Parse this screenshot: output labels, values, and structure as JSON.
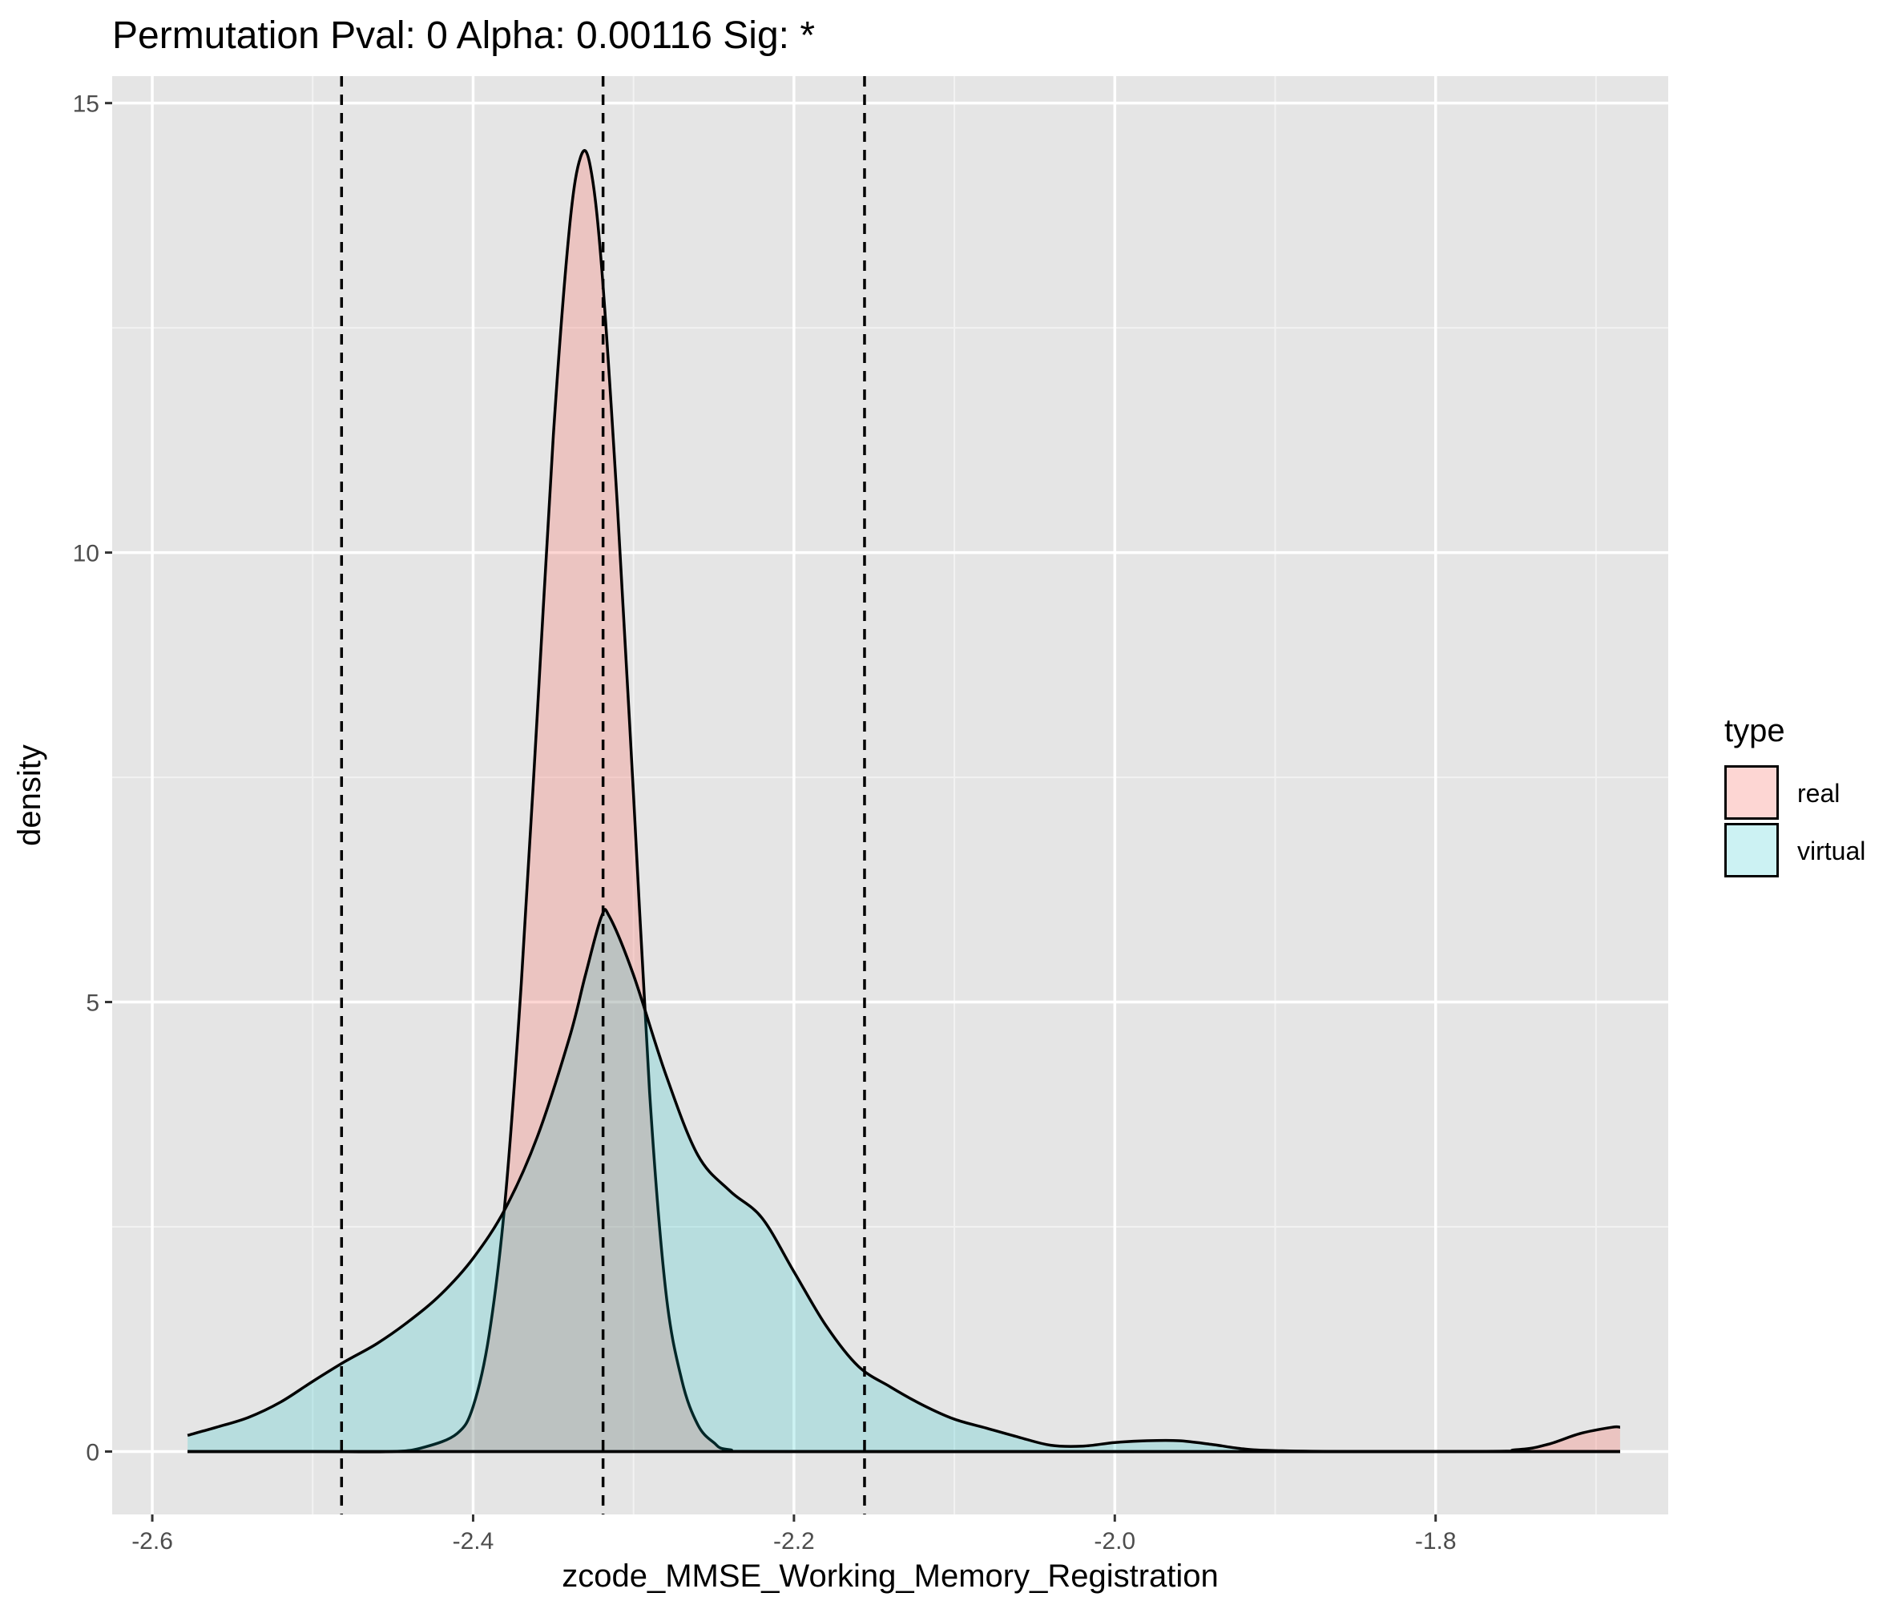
{
  "chart_data": {
    "type": "area",
    "title": "Permutation Pval: 0 Alpha: 0.00116 Sig: *",
    "xlabel": "zcode_MMSE_Working_Memory_Registration",
    "ylabel": "density",
    "xlim": [
      -2.625,
      -1.655
    ],
    "ylim": [
      -0.7,
      15.3
    ],
    "x_ticks": [
      -2.6,
      -2.4,
      -2.2,
      -2.0,
      -1.8
    ],
    "x_tick_labels": [
      "-2.6",
      "-2.4",
      "-2.2",
      "-2.0",
      "-1.8"
    ],
    "y_ticks": [
      0,
      5,
      10,
      15
    ],
    "y_tick_labels": [
      "0",
      "5",
      "10",
      "15"
    ],
    "grid": true,
    "legend": {
      "title": "type",
      "position": "right"
    },
    "vlines": [
      -2.482,
      -2.319,
      -2.156
    ],
    "series": [
      {
        "name": "real",
        "fill": "#F8766D",
        "fill_opacity": 0.3,
        "points": [
          [
            -2.578,
            0
          ],
          [
            -2.5,
            0
          ],
          [
            -2.45,
            0.0
          ],
          [
            -2.43,
            0.05
          ],
          [
            -2.41,
            0.2
          ],
          [
            -2.4,
            0.5
          ],
          [
            -2.39,
            1.3
          ],
          [
            -2.38,
            2.8
          ],
          [
            -2.37,
            5.2
          ],
          [
            -2.36,
            8.2
          ],
          [
            -2.35,
            11.3
          ],
          [
            -2.34,
            13.6
          ],
          [
            -2.333,
            14.4
          ],
          [
            -2.327,
            14.3
          ],
          [
            -2.32,
            13.2
          ],
          [
            -2.31,
            10.5
          ],
          [
            -2.3,
            7.3
          ],
          [
            -2.29,
            4.0
          ],
          [
            -2.28,
            1.8
          ],
          [
            -2.27,
            0.8
          ],
          [
            -2.26,
            0.3
          ],
          [
            -2.25,
            0.1
          ],
          [
            -2.24,
            0.02
          ],
          [
            -2.2,
            0
          ],
          [
            -1.8,
            0
          ],
          [
            -1.75,
            0.02
          ],
          [
            -1.73,
            0.08
          ],
          [
            -1.71,
            0.2
          ],
          [
            -1.69,
            0.27
          ],
          [
            -1.685,
            0.27
          ]
        ]
      },
      {
        "name": "virtual",
        "fill": "#00BFC4",
        "fill_opacity": 0.2,
        "points": [
          [
            -2.578,
            0.18
          ],
          [
            -2.56,
            0.27
          ],
          [
            -2.54,
            0.38
          ],
          [
            -2.52,
            0.55
          ],
          [
            -2.5,
            0.78
          ],
          [
            -2.48,
            1.0
          ],
          [
            -2.46,
            1.2
          ],
          [
            -2.44,
            1.45
          ],
          [
            -2.42,
            1.75
          ],
          [
            -2.4,
            2.15
          ],
          [
            -2.38,
            2.7
          ],
          [
            -2.36,
            3.5
          ],
          [
            -2.34,
            4.6
          ],
          [
            -2.33,
            5.3
          ],
          [
            -2.32,
            5.95
          ],
          [
            -2.315,
            5.95
          ],
          [
            -2.3,
            5.3
          ],
          [
            -2.28,
            4.2
          ],
          [
            -2.26,
            3.3
          ],
          [
            -2.24,
            2.9
          ],
          [
            -2.22,
            2.6
          ],
          [
            -2.2,
            2.0
          ],
          [
            -2.18,
            1.4
          ],
          [
            -2.16,
            0.95
          ],
          [
            -2.14,
            0.72
          ],
          [
            -2.12,
            0.52
          ],
          [
            -2.1,
            0.36
          ],
          [
            -2.08,
            0.26
          ],
          [
            -2.06,
            0.16
          ],
          [
            -2.04,
            0.07
          ],
          [
            -2.02,
            0.06
          ],
          [
            -2.0,
            0.1
          ],
          [
            -1.98,
            0.12
          ],
          [
            -1.96,
            0.12
          ],
          [
            -1.94,
            0.08
          ],
          [
            -1.92,
            0.03
          ],
          [
            -1.9,
            0.01
          ],
          [
            -1.85,
            0
          ],
          [
            -1.685,
            0
          ]
        ]
      }
    ]
  }
}
